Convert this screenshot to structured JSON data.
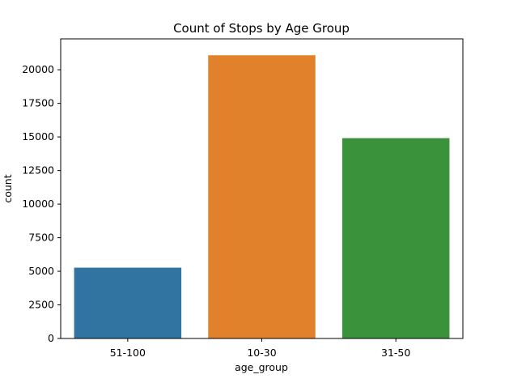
{
  "chart_data": {
    "type": "bar",
    "title": "Count of Stops by Age Group",
    "xlabel": "age_group",
    "ylabel": "count",
    "categories": [
      "51-100",
      "10-30",
      "31-50"
    ],
    "values": [
      5270,
      21080,
      14910
    ],
    "colors": [
      "#3274a1",
      "#e1812c",
      "#3a923a"
    ],
    "ylim": [
      0,
      22300
    ],
    "yticks": [
      0,
      2500,
      5000,
      7500,
      10000,
      12500,
      15000,
      17500,
      20000
    ],
    "ytick_labels": [
      "0",
      "2500",
      "5000",
      "7500",
      "10000",
      "12500",
      "15000",
      "17500",
      "20000"
    ],
    "grid": false,
    "legend": "none"
  }
}
